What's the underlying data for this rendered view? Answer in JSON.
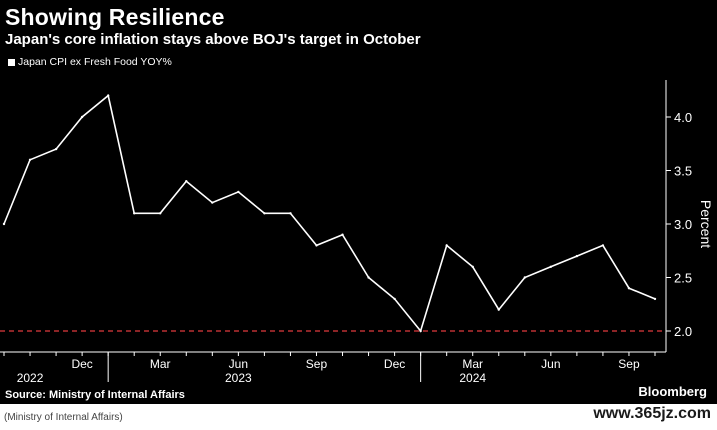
{
  "header": {
    "title": "Showing Resilience",
    "subtitle": "Japan's core inflation stays above BOJ's target in October"
  },
  "footer": {
    "source": "Source: Ministry of Internal Affairs",
    "brand": "Bloomberg",
    "note": "(Ministry of Internal Affairs)",
    "watermark": "www.365jz.com"
  },
  "colors": {
    "background": "#000000",
    "line": "#ffffff",
    "target_line": "#e0393e",
    "axis": "#ffffff"
  },
  "chart_data": {
    "type": "line",
    "series": [
      {
        "name": "Japan CPI ex Fresh Food YOY%",
        "x": [
          "2022-09",
          "2022-10",
          "2022-11",
          "2022-12",
          "2023-01",
          "2023-02",
          "2023-03",
          "2023-04",
          "2023-05",
          "2023-06",
          "2023-07",
          "2023-08",
          "2023-09",
          "2023-10",
          "2023-11",
          "2023-12",
          "2024-01",
          "2024-02",
          "2024-03",
          "2024-04",
          "2024-05",
          "2024-06",
          "2024-07",
          "2024-08",
          "2024-09",
          "2024-10"
        ],
        "values": [
          3.0,
          3.6,
          3.7,
          4.0,
          4.2,
          3.1,
          3.1,
          3.4,
          3.2,
          3.3,
          3.1,
          3.1,
          2.8,
          2.9,
          2.5,
          2.3,
          2.0,
          2.8,
          2.6,
          2.2,
          2.5,
          2.6,
          2.7,
          2.8,
          2.4,
          2.3
        ]
      }
    ],
    "reference_line": {
      "value": 2.0,
      "style": "dashed"
    },
    "ylabel": "Percent",
    "ylim": [
      1.8,
      4.4
    ],
    "yticks": [
      "4.0",
      "3.5",
      "3.0",
      "2.5",
      "2.0"
    ],
    "y_axis_side": "right",
    "xticks": [
      {
        "label": "Dec",
        "date": "2022-12"
      },
      {
        "label": "Mar",
        "date": "2023-03"
      },
      {
        "label": "Jun",
        "date": "2023-06"
      },
      {
        "label": "Sep",
        "date": "2023-09"
      },
      {
        "label": "Dec",
        "date": "2023-12"
      },
      {
        "label": "Mar",
        "date": "2024-03"
      },
      {
        "label": "Jun",
        "date": "2024-06"
      },
      {
        "label": "Sep",
        "date": "2024-09"
      }
    ],
    "year_labels": [
      {
        "label": "2022",
        "date": "2022-10"
      },
      {
        "label": "2023",
        "date": "2023-06"
      },
      {
        "label": "2024",
        "date": "2024-03"
      }
    ],
    "year_dividers": [
      "2022-12-31",
      "2023-12-31"
    ],
    "grid": false,
    "legend": "top-left"
  }
}
